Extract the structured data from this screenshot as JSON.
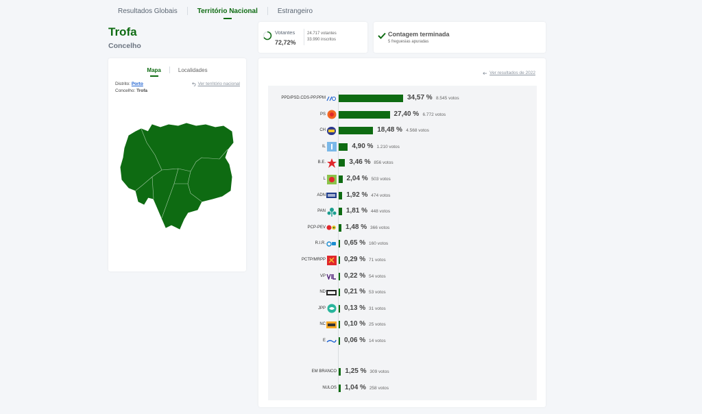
{
  "nav": {
    "tabs": [
      {
        "label": "Resultados Globais",
        "active": false
      },
      {
        "label": "Território Nacional",
        "active": true
      },
      {
        "label": "Estrangeiro",
        "active": false
      }
    ]
  },
  "place": {
    "title": "Trofa",
    "subtitle": "Concelho"
  },
  "map_panel": {
    "tab_map": "Mapa",
    "tab_localities": "Localidades",
    "district_label": "Distrito:",
    "district_value": "Porto",
    "county_label": "Concelho:",
    "county_value": "Trofa",
    "back_link": "Ver território nacional",
    "map_fill": "#0e6b12"
  },
  "turnout": {
    "label": "Votantes",
    "percent": "72,72%",
    "voters": "24.717 votantes",
    "registered": "33.990 inscritos"
  },
  "count_status": {
    "title": "Contagem terminada",
    "subtitle": "5 freguesias apuradas"
  },
  "results": {
    "previous_link": "Ver resultados de 2022",
    "bar_color": "#0e6b12",
    "parties": [
      {
        "name": "PPD/PSD.CDS-PP.PPM",
        "percent_value": 34.57,
        "percent": "34,57 %",
        "votes": "8.545 votos",
        "icon": "ad-logo-icon"
      },
      {
        "name": "PS",
        "percent_value": 27.4,
        "percent": "27,40 %",
        "votes": "6.772 votos",
        "icon": "ps-logo-icon"
      },
      {
        "name": "CH",
        "percent_value": 18.48,
        "percent": "18,48 %",
        "votes": "4.568 votos",
        "icon": "ch-logo-icon"
      },
      {
        "name": "IL",
        "percent_value": 4.9,
        "percent": "4,90 %",
        "votes": "1.210 votos",
        "icon": "il-logo-icon"
      },
      {
        "name": "B.E.",
        "percent_value": 3.46,
        "percent": "3,46 %",
        "votes": "856 votos",
        "icon": "be-logo-icon"
      },
      {
        "name": "L",
        "percent_value": 2.04,
        "percent": "2,04 %",
        "votes": "503 votos",
        "icon": "livre-logo-icon"
      },
      {
        "name": "ADN",
        "percent_value": 1.92,
        "percent": "1,92 %",
        "votes": "474 votos",
        "icon": "adn-logo-icon"
      },
      {
        "name": "PAN",
        "percent_value": 1.81,
        "percent": "1,81 %",
        "votes": "448 votos",
        "icon": "pan-logo-icon"
      },
      {
        "name": "PCP-PEV",
        "percent_value": 1.48,
        "percent": "1,48 %",
        "votes": "366 votos",
        "icon": "cdu-logo-icon"
      },
      {
        "name": "R.I.R.",
        "percent_value": 0.65,
        "percent": "0,65 %",
        "votes": "160 votos",
        "icon": "rir-logo-icon"
      },
      {
        "name": "PCTP/MRPP",
        "percent_value": 0.29,
        "percent": "0,29 %",
        "votes": "71 votos",
        "icon": "pctp-logo-icon"
      },
      {
        "name": "VP",
        "percent_value": 0.22,
        "percent": "0,22 %",
        "votes": "54 votos",
        "icon": "volt-logo-icon"
      },
      {
        "name": "ND",
        "percent_value": 0.21,
        "percent": "0,21 %",
        "votes": "53 votos",
        "icon": "nd-logo-icon"
      },
      {
        "name": "JPP",
        "percent_value": 0.13,
        "percent": "0,13 %",
        "votes": "31 votos",
        "icon": "jpp-logo-icon"
      },
      {
        "name": "NC",
        "percent_value": 0.1,
        "percent": "0,10 %",
        "votes": "25 votos",
        "icon": "nc-logo-icon"
      },
      {
        "name": "E",
        "percent_value": 0.06,
        "percent": "0,06 %",
        "votes": "14 votos",
        "icon": "ergue-te-logo-icon"
      }
    ],
    "other": [
      {
        "name": "EM BRANCO",
        "percent_value": 1.25,
        "percent": "1,25 %",
        "votes": "309 votos"
      },
      {
        "name": "NULOS",
        "percent_value": 1.04,
        "percent": "1,04 %",
        "votes": "258 votos"
      }
    ]
  }
}
